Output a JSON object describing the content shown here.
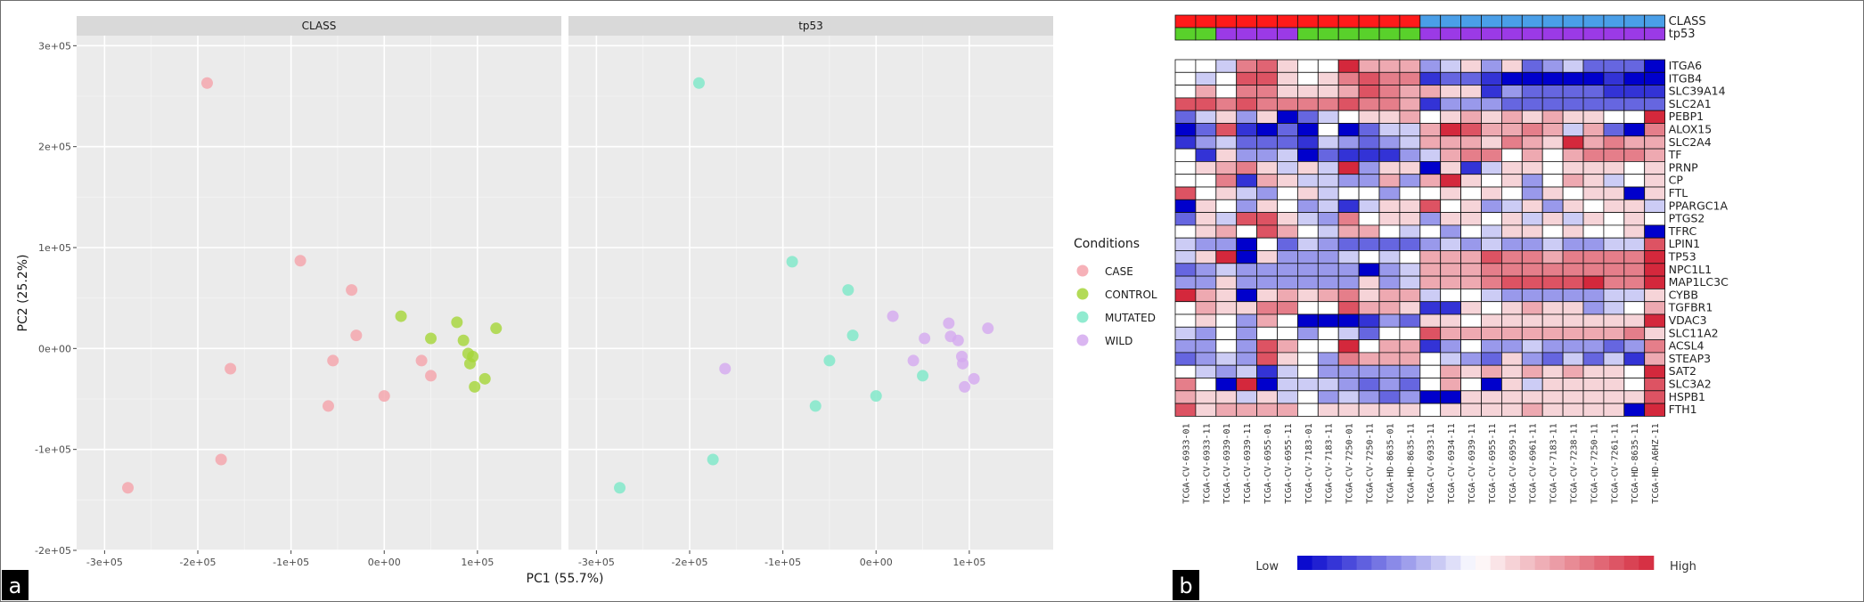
{
  "panels": {
    "a": "a",
    "b": "b"
  },
  "chart_data": [
    {
      "type": "scatter",
      "facets": [
        "CLASS",
        "tp53"
      ],
      "xlabel": "PC1 (55.7%)",
      "ylabel": "PC2 (25.2%)",
      "xlim": [
        -330000,
        190000
      ],
      "ylim": [
        -200000,
        310000
      ],
      "xticks": [
        -300000,
        -200000,
        -100000,
        0,
        100000
      ],
      "xtick_labels": [
        "-3e+05",
        "-2e+05",
        "-1e+05",
        "0e+00",
        "1e+05"
      ],
      "yticks": [
        -200000,
        -100000,
        0,
        100000,
        200000,
        300000
      ],
      "ytick_labels": [
        "-2e+05",
        "-1e+05",
        "0e+00",
        "1e+05",
        "2e+05",
        "3e+05"
      ],
      "grid": true,
      "legend": {
        "title": "Conditions",
        "placement": "right",
        "entries": [
          {
            "label": "CASE",
            "color": "#f4a3ab"
          },
          {
            "label": "CONTROL",
            "color": "#a6d53a"
          },
          {
            "label": "MUTATED",
            "color": "#7ee8c8"
          },
          {
            "label": "WILD",
            "color": "#d4a9ef"
          }
        ]
      },
      "series": [
        {
          "name": "CASE",
          "facet": 0,
          "x": [
            -190000,
            -90000,
            -35000,
            -30000,
            -165000,
            -55000,
            -60000,
            0,
            50000,
            -175000,
            -275000,
            40000
          ],
          "y": [
            263000,
            87000,
            58000,
            13000,
            -20000,
            -12000,
            -57000,
            -47000,
            -27000,
            -110000,
            -138000,
            -12000
          ]
        },
        {
          "name": "CONTROL",
          "facet": 0,
          "x": [
            18000,
            50000,
            78000,
            85000,
            120000,
            90000,
            95000,
            92000,
            108000,
            97000
          ],
          "y": [
            32000,
            10000,
            26000,
            8000,
            20000,
            -5000,
            -8000,
            -15000,
            -30000,
            -38000
          ]
        },
        {
          "name": "MUTATED",
          "facet": 1,
          "x": [
            -190000,
            -90000,
            -30000,
            -25000,
            -50000,
            -65000,
            0,
            50000,
            -175000,
            -275000
          ],
          "y": [
            263000,
            86000,
            58000,
            13000,
            -12000,
            -57000,
            -47000,
            -27000,
            -110000,
            -138000
          ]
        },
        {
          "name": "WILD",
          "facet": 1,
          "x": [
            18000,
            40000,
            52000,
            78000,
            80000,
            88000,
            92000,
            93000,
            120000,
            -162000,
            95000,
            105000
          ],
          "y": [
            32000,
            -12000,
            10000,
            25000,
            12000,
            8000,
            -8000,
            -15000,
            20000,
            -20000,
            -38000,
            -30000
          ]
        }
      ]
    },
    {
      "type": "heatmap",
      "columns": [
        "TCGA-CV-6933-01",
        "TCGA-CV-6933-11",
        "TCGA-CV-6939-01",
        "TCGA-CV-6939-11",
        "TCGA-CV-6955-01",
        "TCGA-CV-6955-11",
        "TCGA-CV-7183-01",
        "TCGA-CV-7183-11",
        "TCGA-CV-7250-01",
        "TCGA-CV-7250-11",
        "TCGA-HD-8635-01",
        "TCGA-HD-8635-11",
        "TCGA-CV-6933-11",
        "TCGA-CV-6934-11",
        "TCGA-CV-6939-11",
        "TCGA-CV-6955-11",
        "TCGA-CV-6959-11",
        "TCGA-CV-6961-11",
        "TCGA-CV-7183-11",
        "TCGA-CV-7238-11",
        "TCGA-CV-7250-11",
        "TCGA-CV-7261-11",
        "TCGA-HD-8635-11",
        "TCGA-HD-A6HZ-11"
      ],
      "column_annotations": {
        "labels": [
          "CLASS",
          "tp53"
        ],
        "CLASS": [
          "red",
          "red",
          "red",
          "red",
          "red",
          "red",
          "red",
          "red",
          "red",
          "red",
          "red",
          "red",
          "blue",
          "blue",
          "blue",
          "blue",
          "blue",
          "blue",
          "blue",
          "blue",
          "blue",
          "blue",
          "blue",
          "blue"
        ],
        "tp53": [
          "green",
          "green",
          "purple",
          "purple",
          "purple",
          "purple",
          "green",
          "green",
          "green",
          "green",
          "green",
          "green",
          "purple",
          "purple",
          "purple",
          "purple",
          "purple",
          "purple",
          "purple",
          "purple",
          "purple",
          "purple",
          "purple",
          "purple"
        ],
        "colors": {
          "red": "#ff1a1a",
          "blue": "#4a9fe8",
          "green": "#59d12b",
          "purple": "#9b3ae6"
        }
      },
      "rows": [
        "ITGA6",
        "ITGB4",
        "SLC39A14",
        "SLC2A1",
        "PEBP1",
        "ALOX15",
        "SLC2A4",
        "TF",
        "PRNP",
        "CP",
        "FTL",
        "PPARGC1A",
        "PTGS2",
        "TFRC",
        "LPIN1",
        "TP53",
        "NPC1L1",
        "MAP1LC3C",
        "CYBB",
        "TGFBR1",
        "VDAC3",
        "SLC11A2",
        "ACSL4",
        "STEAP3",
        "SAT2",
        "SLC3A2",
        "HSPB1",
        "FTH1"
      ],
      "values": [
        [
          0,
          0,
          -0.5,
          1.5,
          1.8,
          0.5,
          0,
          0,
          2.5,
          1,
          1,
          1,
          -1,
          -0.5,
          0.5,
          -1,
          0.5,
          -1.5,
          -1,
          -0.5,
          -1.5,
          -1.5,
          -1.5,
          -2.5
        ],
        [
          0,
          -0.5,
          0,
          2,
          2,
          0.5,
          0,
          0.5,
          1.5,
          2,
          1.5,
          1.5,
          -2,
          -1.5,
          -1.5,
          -2,
          -2.5,
          -2.5,
          -2.5,
          -2.5,
          -2.5,
          -2,
          -2.5,
          -2.5
        ],
        [
          0,
          1,
          0,
          1.5,
          1.5,
          0.5,
          0.5,
          0.5,
          1,
          2,
          1.5,
          1,
          1,
          0.5,
          0.5,
          -2,
          -1,
          -1.5,
          -1.5,
          -1.5,
          -1.5,
          -2,
          -2,
          -2
        ],
        [
          2,
          2,
          1.5,
          2,
          1.5,
          1.5,
          1.5,
          1.5,
          2,
          1.5,
          1.5,
          1,
          -2,
          -1,
          -1,
          -1,
          -1.5,
          -1.5,
          -1.5,
          -1.5,
          -1.5,
          -1.5,
          -1.5,
          -1.5
        ],
        [
          -1.5,
          -0.5,
          0.5,
          -1,
          0.5,
          -2.5,
          -1.5,
          -0.5,
          0,
          0.5,
          0.5,
          1,
          0,
          0.5,
          1,
          0.5,
          1,
          0.5,
          1,
          0.5,
          0.5,
          0,
          0,
          2.5
        ],
        [
          -2.5,
          -1.5,
          2,
          -2,
          -2.5,
          -1.5,
          -2.5,
          0,
          -2.5,
          -1.5,
          -0.5,
          -0.5,
          1,
          2.5,
          2,
          1,
          1,
          1.5,
          1,
          -0.5,
          1,
          -1.5,
          -2.5,
          1.5
        ],
        [
          -2,
          -1,
          -0.5,
          -1.5,
          -1.5,
          -1.5,
          -2,
          -0.5,
          -1,
          -1.5,
          -1,
          -0.5,
          1,
          1,
          1,
          0.5,
          1.5,
          1,
          0.5,
          2.5,
          1,
          1.5,
          1,
          1
        ],
        [
          0,
          -2,
          0.5,
          -1,
          -1,
          -0.5,
          -2.5,
          -1.5,
          -2,
          -2,
          -2,
          -1,
          -0.5,
          1,
          1.5,
          1.5,
          0,
          1,
          0,
          1,
          1.5,
          1.5,
          1.5,
          1
        ],
        [
          0,
          0.5,
          1,
          1.5,
          0.5,
          -0.5,
          0.5,
          -0.5,
          2.5,
          -1,
          0.5,
          0.5,
          -2.5,
          0.5,
          -2,
          -0.5,
          0.5,
          0.5,
          0,
          0.5,
          0.5,
          0.5,
          0,
          0.5
        ],
        [
          0,
          0,
          1.5,
          -2,
          1,
          0.5,
          -0.5,
          -0.5,
          -1,
          -1,
          1,
          -1,
          1,
          2.5,
          0.5,
          0,
          0.5,
          -1,
          0,
          1,
          0.5,
          -0.5,
          0,
          0.5
        ],
        [
          2,
          0,
          0.5,
          -0.5,
          -1,
          0,
          0.5,
          -0.5,
          0,
          0,
          -1,
          0,
          0,
          0.5,
          0,
          0.5,
          0,
          -1,
          0.5,
          0,
          0.5,
          0.5,
          -2.5,
          0.5
        ],
        [
          -2.5,
          0.5,
          0,
          -1,
          0.5,
          0,
          -1,
          -0.5,
          -2,
          -0.5,
          0.5,
          0.5,
          2,
          0,
          0.5,
          -1,
          -0.5,
          0.5,
          -1,
          0.5,
          0,
          0.5,
          0.5,
          -0.5
        ],
        [
          -1.5,
          0.5,
          -0.5,
          2,
          2,
          0.5,
          -0.5,
          -1,
          1.5,
          0,
          0.5,
          0.5,
          -1,
          0.5,
          0.5,
          0,
          0.5,
          -0.5,
          0.5,
          -0.5,
          0.5,
          0,
          0.5,
          0
        ],
        [
          0,
          0.5,
          1,
          0,
          2,
          1,
          0,
          -0.5,
          1,
          1,
          0,
          -0.5,
          0,
          -1,
          0,
          -0.5,
          0.5,
          0.5,
          0,
          0.5,
          0,
          0,
          0.5,
          -2.5
        ],
        [
          -0.5,
          -1,
          -1,
          -2.5,
          0,
          -1.5,
          -0.5,
          -1,
          -1.5,
          -1.5,
          -1.5,
          -1.5,
          -1,
          -0.5,
          -1,
          -0.5,
          -1,
          -1,
          -0.5,
          -1,
          -1,
          -0.5,
          -0.5,
          2
        ],
        [
          -0.5,
          0.5,
          2.5,
          -2.5,
          0.5,
          -1,
          -1,
          -1,
          -0.5,
          0,
          -0.5,
          0,
          1,
          1,
          1,
          2,
          1.5,
          1.5,
          1,
          1.5,
          1.5,
          1.5,
          1.5,
          2.5
        ],
        [
          -1.5,
          -1,
          -0.5,
          -1,
          -1,
          -1,
          -1,
          -1,
          -1,
          -2.5,
          -1,
          -0.5,
          1,
          1,
          1,
          1.5,
          1.5,
          1.5,
          1.5,
          1.5,
          1.5,
          1.5,
          1.5,
          2.5
        ],
        [
          -1,
          -1,
          0.5,
          -1,
          -1,
          -1,
          -1,
          -1,
          -1,
          0.5,
          -1,
          -0.5,
          1,
          1,
          1,
          1.5,
          2,
          2,
          2,
          2,
          2.5,
          1.5,
          1.5,
          2.5
        ],
        [
          2.5,
          1,
          0.5,
          -2.5,
          0.5,
          1,
          0.5,
          1,
          1.5,
          0.5,
          1,
          1,
          -0.5,
          0,
          0,
          -0.5,
          -1,
          -1,
          -1,
          -1,
          -1,
          -0.5,
          -0.5,
          0.5
        ],
        [
          0,
          1,
          0.5,
          0.5,
          1.5,
          1.5,
          0,
          0,
          2,
          1,
          1,
          0.5,
          -2,
          -2,
          0.5,
          0,
          0.5,
          1,
          0.5,
          0.5,
          -1,
          -0.5,
          0,
          1
        ],
        [
          0,
          0.5,
          0,
          -1,
          1,
          0,
          -2.5,
          -2.5,
          -2.5,
          -2,
          -1,
          -1.5,
          0.5,
          0.5,
          0,
          0.5,
          0.5,
          0.5,
          0.5,
          0.5,
          0.5,
          0.5,
          0.5,
          2.5
        ],
        [
          -0.5,
          -1,
          0,
          -1,
          0,
          0,
          -1,
          0,
          -0.5,
          -1.5,
          0,
          0,
          2,
          1,
          1,
          1,
          1,
          1,
          1,
          1,
          1,
          1,
          1.5,
          0.5
        ],
        [
          -1,
          -1,
          0,
          -1,
          2,
          1,
          0,
          0,
          2.5,
          0,
          1,
          1,
          -2,
          -1,
          0,
          -1,
          -1,
          -0.5,
          -1,
          -1,
          -1,
          -1.5,
          -1,
          1.5
        ],
        [
          -1.5,
          -1,
          -0.5,
          -1,
          2,
          0.5,
          0,
          -1,
          1.5,
          1,
          1,
          1,
          0,
          -0.5,
          -1,
          -1.5,
          0.5,
          -1,
          -1.5,
          -0.5,
          -1.5,
          -0.5,
          -2,
          1
        ],
        [
          0,
          -0.5,
          -1,
          -0.5,
          -2,
          -0.5,
          0,
          -1,
          -1,
          -1,
          -1,
          -1,
          0,
          1,
          0.5,
          1,
          0.5,
          1,
          0.5,
          1,
          0.5,
          0.5,
          0,
          2.5
        ],
        [
          1.5,
          0,
          -2.5,
          2.5,
          -2.5,
          -0.5,
          -0.5,
          -0.5,
          -1,
          -1.5,
          -1,
          -1.5,
          0,
          1,
          0,
          -2.5,
          0.5,
          -0.5,
          0.5,
          0.5,
          0.5,
          0.5,
          0,
          2
        ],
        [
          1,
          0.5,
          0.5,
          -0.5,
          0.5,
          -0.5,
          0,
          -1,
          -0.5,
          -1,
          -1.5,
          -1,
          -2.5,
          -2.5,
          0.5,
          0.5,
          0.5,
          0.5,
          0.5,
          0.5,
          0.5,
          0.5,
          0.5,
          2
        ],
        [
          2,
          0.5,
          1,
          1,
          1,
          1,
          0,
          0.5,
          0.5,
          0.5,
          0.5,
          0.5,
          0,
          0.5,
          0.5,
          0.5,
          0.5,
          1,
          0.5,
          0.5,
          0.5,
          0.5,
          -2.5,
          2.5
        ]
      ],
      "legend": {
        "low": "Low",
        "high": "High",
        "low_color": "#0000cc",
        "mid_color": "#ffffff",
        "high_color": "#d4283c"
      }
    }
  ]
}
